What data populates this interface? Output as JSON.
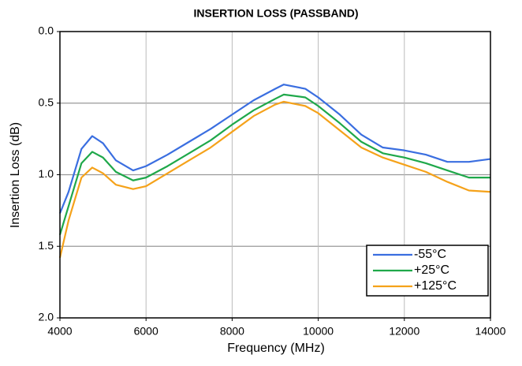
{
  "chart_data": {
    "type": "line",
    "title": "INSERTION LOSS (PASSBAND)",
    "x_label": "Frequency (MHz)",
    "y_label": "Insertion Loss (dB)",
    "x": [
      4000,
      4200,
      4500,
      4750,
      5000,
      5300,
      5700,
      6000,
      6500,
      7000,
      7500,
      8000,
      8500,
      9000,
      9200,
      9700,
      10000,
      10500,
      11000,
      11500,
      12000,
      12500,
      13000,
      13500,
      14000
    ],
    "series": [
      {
        "name": "-55°C",
        "color": "#3a6ee0",
        "values": [
          1.27,
          1.12,
          0.82,
          0.73,
          0.78,
          0.9,
          0.97,
          0.94,
          0.86,
          0.77,
          0.68,
          0.58,
          0.48,
          0.4,
          0.37,
          0.4,
          0.46,
          0.58,
          0.72,
          0.81,
          0.83,
          0.86,
          0.91,
          0.91,
          0.89
        ]
      },
      {
        "name": "+25°C",
        "color": "#1fa84a",
        "values": [
          1.42,
          1.22,
          0.92,
          0.84,
          0.88,
          0.98,
          1.04,
          1.02,
          0.94,
          0.85,
          0.76,
          0.65,
          0.55,
          0.47,
          0.44,
          0.46,
          0.52,
          0.64,
          0.77,
          0.85,
          0.88,
          0.92,
          0.97,
          1.02,
          1.02
        ]
      },
      {
        "name": "+125°C",
        "color": "#f5a21a",
        "values": [
          1.58,
          1.32,
          1.02,
          0.95,
          0.99,
          1.07,
          1.1,
          1.08,
          0.99,
          0.9,
          0.81,
          0.7,
          0.59,
          0.51,
          0.49,
          0.52,
          0.57,
          0.69,
          0.81,
          0.88,
          0.93,
          0.98,
          1.05,
          1.11,
          1.12
        ]
      }
    ],
    "xlim": [
      4000,
      14000
    ],
    "xticks": [
      4000,
      6000,
      8000,
      10000,
      12000,
      14000
    ],
    "ylim": [
      0,
      2
    ],
    "y_inverted": true,
    "yticks": [
      {
        "value": 0,
        "label": "0.0"
      },
      0.5,
      {
        "value": 1,
        "label": "1.0"
      },
      1.5,
      {
        "value": 2,
        "label": "2.0"
      }
    ],
    "grid": true,
    "legend": "lower right"
  }
}
